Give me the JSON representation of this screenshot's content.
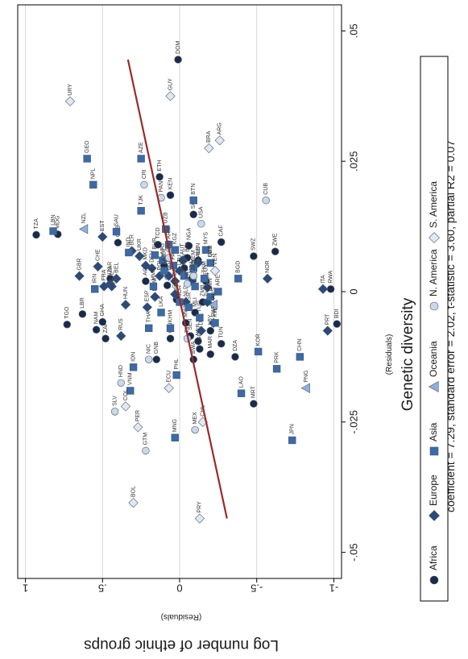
{
  "chart_data": {
    "type": "scatter",
    "orientation": "rotated-90-ccw",
    "title": "",
    "xlabel": "Genetic diversity",
    "xlabel_sub": "(Residuals)",
    "ylabel": "Log number of ethnic groups",
    "ylabel_sub": "(Residuals)",
    "xlim": [
      -0.055,
      0.055
    ],
    "ylim": [
      -1.05,
      1.05
    ],
    "x_ticks": [
      {
        "value": -0.05,
        "label": "-.05"
      },
      {
        "value": -0.025,
        "label": "-.025"
      },
      {
        "value": 0,
        "label": "0"
      },
      {
        "value": 0.025,
        "label": ".025"
      },
      {
        "value": 0.05,
        "label": ".05"
      }
    ],
    "y_ticks": [
      {
        "value": 1,
        "label": "1"
      },
      {
        "value": 0.5,
        "label": ".5"
      },
      {
        "value": 0,
        "label": "0"
      },
      {
        "value": -0.5,
        "label": "-.5"
      },
      {
        "value": -1,
        "label": "-1"
      }
    ],
    "grid": true,
    "fit_line": {
      "color": "#9b2a2a",
      "points": [
        [
          -0.0435,
          -0.307
        ],
        [
          0.0445,
          0.335
        ]
      ]
    },
    "caption": "coefficient = 7.29, standard error = 2.02, t-statistic = 3.60, partial R2 = 0.07",
    "legend": {
      "placement": "right",
      "items": [
        {
          "name": "Africa",
          "marker": "circle",
          "color": "#1a2a4a"
        },
        {
          "name": "Europe",
          "marker": "diamond",
          "color": "#2a4a7a"
        },
        {
          "name": "Asia",
          "marker": "square",
          "color": "#3a6aa8"
        },
        {
          "name": "Oceania",
          "marker": "triangle",
          "color": "#8fb0d8"
        },
        {
          "name": "N. America",
          "marker": "circle",
          "color": "#c9d9ea"
        },
        {
          "name": "S. America",
          "marker": "diamond",
          "color": "#e1e8f1"
        }
      ]
    },
    "series": [
      {
        "name": "Africa",
        "points": [
          {
            "label": "DOM",
            "x": 0.0445,
            "y": 0.01
          },
          {
            "label": "TZA",
            "x": 0.0109,
            "y": 0.93
          },
          {
            "label": "TGO",
            "x": -0.0063,
            "y": 0.73
          },
          {
            "label": "LBR",
            "x": -0.0043,
            "y": 0.63
          },
          {
            "label": "NAM",
            "x": -0.0073,
            "y": 0.54
          },
          {
            "label": "GHA",
            "x": -0.0058,
            "y": 0.5
          },
          {
            "label": "ZAF",
            "x": -0.009,
            "y": 0.48
          },
          {
            "label": "GNB",
            "x": -0.013,
            "y": 0.15
          },
          {
            "label": "ETH",
            "x": 0.022,
            "y": 0.13
          },
          {
            "label": "TCD",
            "x": 0.009,
            "y": 0.14
          },
          {
            "label": "SOM",
            "x": 0.0148,
            "y": -0.09
          },
          {
            "label": "CAF",
            "x": 0.0095,
            "y": -0.27
          },
          {
            "label": "SDN",
            "x": 0.0055,
            "y": -0.2
          },
          {
            "label": "SWZ",
            "x": 0.0068,
            "y": -0.48
          },
          {
            "label": "ZWE",
            "x": 0.0077,
            "y": -0.62
          },
          {
            "label": "RWA",
            "x": 0.0005,
            "y": -0.98
          },
          {
            "label": "BDI",
            "x": -0.0062,
            "y": -1.02
          },
          {
            "label": "DZA",
            "x": -0.0125,
            "y": -0.36
          },
          {
            "label": "MRT",
            "x": -0.0215,
            "y": -0.48
          },
          {
            "label": "NER",
            "x": -0.0095,
            "y": -0.12
          },
          {
            "label": "NGA",
            "x": 0.0088,
            "y": -0.06
          },
          {
            "label": "ZAR",
            "x": 0.0025,
            "y": 0.45
          },
          {
            "label": "KEN",
            "x": 0.0185,
            "y": 0.06
          },
          {
            "label": "CIV",
            "x": 0.0045,
            "y": -0.03
          },
          {
            "label": "GIN",
            "x": -0.009,
            "y": 0.06
          },
          {
            "label": "UGA",
            "x": 0.0025,
            "y": -0.08
          },
          {
            "label": "MOZ",
            "x": 0.005,
            "y": 0.1
          },
          {
            "label": "MLI",
            "x": -0.004,
            "y": -0.1
          },
          {
            "label": "CMR",
            "x": 0.0012,
            "y": 0.08
          },
          {
            "label": "BFA",
            "x": 0.0065,
            "y": -0.05
          },
          {
            "label": "EGY",
            "x": 0.002,
            "y": -0.17
          },
          {
            "label": "ZMB",
            "x": -0.002,
            "y": -0.15
          },
          {
            "label": "SEN",
            "x": -0.0085,
            "y": -0.07
          },
          {
            "label": "MAR",
            "x": -0.012,
            "y": -0.2
          },
          {
            "label": "BWA",
            "x": -0.013,
            "y": -0.09
          },
          {
            "label": "LSO",
            "x": -0.011,
            "y": -0.13
          },
          {
            "label": "AGO",
            "x": 0.002,
            "y": 0.22
          },
          {
            "label": "MWI",
            "x": -0.006,
            "y": -0.04
          },
          {
            "label": "TUN",
            "x": -0.01,
            "y": -0.27
          },
          {
            "label": "BEN",
            "x": 0.006,
            "y": -0.12
          },
          {
            "label": "SLE",
            "x": -0.0015,
            "y": 0.02
          },
          {
            "label": "LBY",
            "x": -0.0075,
            "y": -0.2
          },
          {
            "label": "MDG",
            "x": 0.011,
            "y": 0.79
          },
          {
            "label": "GAB",
            "x": 0.0094,
            "y": 0.4
          }
        ]
      },
      {
        "name": "Europe",
        "points": [
          {
            "label": "GBR",
            "x": 0.003,
            "y": 0.65
          },
          {
            "label": "CHE",
            "x": 0.0048,
            "y": 0.53
          },
          {
            "label": "EST",
            "x": 0.0105,
            "y": 0.5
          },
          {
            "label": "FRA",
            "x": 0.001,
            "y": 0.49
          },
          {
            "label": "YUG",
            "x": 0.0015,
            "y": 0.45
          },
          {
            "label": "BEL",
            "x": 0.0025,
            "y": 0.41
          },
          {
            "label": "HUN",
            "x": -0.0025,
            "y": 0.35
          },
          {
            "label": "RUS",
            "x": -0.0085,
            "y": 0.38
          },
          {
            "label": "BLR",
            "x": 0.0078,
            "y": 0.31
          },
          {
            "label": "NOR",
            "x": 0.0025,
            "y": -0.57
          },
          {
            "label": "ITA",
            "x": 0.0005,
            "y": -0.93
          },
          {
            "label": "PRT",
            "x": -0.0075,
            "y": -0.96
          },
          {
            "label": "ALB",
            "x": 0.0055,
            "y": -0.12
          },
          {
            "label": "IRL",
            "x": 0.001,
            "y": 0.44
          },
          {
            "label": "ESP",
            "x": -0.003,
            "y": 0.21
          },
          {
            "label": "SWE",
            "x": -0.006,
            "y": -0.22
          },
          {
            "label": "GRC",
            "x": 0.002,
            "y": 0.03
          },
          {
            "label": "AUT",
            "x": 0.006,
            "y": -0.02
          },
          {
            "label": "DEU",
            "x": 0.0045,
            "y": 0.18
          },
          {
            "label": "POL",
            "x": 0.003,
            "y": 0.13
          },
          {
            "label": "ROM",
            "x": -0.001,
            "y": 0.16
          },
          {
            "label": "UKR",
            "x": 0.0068,
            "y": 0.26
          },
          {
            "label": "FIN",
            "x": 0.0008,
            "y": -0.18
          },
          {
            "label": "DNK",
            "x": -0.0075,
            "y": -0.14
          },
          {
            "label": "NLD",
            "x": -0.002,
            "y": -0.04
          },
          {
            "label": "CZE",
            "x": -0.0005,
            "y": 0.03
          },
          {
            "label": "SVK",
            "x": -0.002,
            "y": -0.18
          },
          {
            "label": "LTU",
            "x": 0.004,
            "y": 0.0
          },
          {
            "label": "LVA",
            "x": 0.002,
            "y": -0.08
          },
          {
            "label": "BGR",
            "x": 0.003,
            "y": 0.07
          },
          {
            "label": "MKD",
            "x": 0.005,
            "y": 0.22
          }
        ]
      },
      {
        "name": "Asia",
        "points": [
          {
            "label": "LBN",
            "x": 0.0116,
            "y": 0.82
          },
          {
            "label": "GEO",
            "x": 0.0255,
            "y": 0.6
          },
          {
            "label": "NPL",
            "x": 0.0205,
            "y": 0.56
          },
          {
            "label": "AZE",
            "x": 0.0255,
            "y": 0.25
          },
          {
            "label": "SAU",
            "x": 0.0115,
            "y": 0.41
          },
          {
            "label": "IND",
            "x": 0.0075,
            "y": 0.33
          },
          {
            "label": "IRN",
            "x": 0.0005,
            "y": 0.55
          },
          {
            "label": "CHN",
            "x": -0.0125,
            "y": -0.78
          },
          {
            "label": "PRK",
            "x": -0.0148,
            "y": -0.63
          },
          {
            "label": "KOR",
            "x": -0.0115,
            "y": -0.51
          },
          {
            "label": "JPN",
            "x": -0.0285,
            "y": -0.73
          },
          {
            "label": "IDN",
            "x": -0.0145,
            "y": 0.3
          },
          {
            "label": "PHL",
            "x": -0.016,
            "y": 0.02
          },
          {
            "label": "LAO",
            "x": -0.0195,
            "y": -0.4
          },
          {
            "label": "MNG",
            "x": -0.028,
            "y": 0.03
          },
          {
            "label": "TJK",
            "x": 0.0155,
            "y": 0.25
          },
          {
            "label": "UZB",
            "x": 0.012,
            "y": 0.09
          },
          {
            "label": "BTN",
            "x": 0.0175,
            "y": -0.09
          },
          {
            "label": "BGD",
            "x": 0.0025,
            "y": -0.38
          },
          {
            "label": "VNM",
            "x": -0.019,
            "y": 0.32
          },
          {
            "label": "THA",
            "x": -0.007,
            "y": 0.2
          },
          {
            "label": "MYS",
            "x": 0.008,
            "y": -0.17
          },
          {
            "label": "PAK",
            "x": 0.005,
            "y": 0.04
          },
          {
            "label": "AFG",
            "x": 0.006,
            "y": 0.11
          },
          {
            "label": "IRQ",
            "x": 0.003,
            "y": -0.03
          },
          {
            "label": "SYR",
            "x": 0.001,
            "y": -0.1
          },
          {
            "label": "JOR",
            "x": -0.002,
            "y": 0.0
          },
          {
            "label": "TUR",
            "x": -0.005,
            "y": -0.13
          },
          {
            "label": "KAZ",
            "x": 0.004,
            "y": 0.1
          },
          {
            "label": "KGZ",
            "x": 0.008,
            "y": 0.03
          },
          {
            "label": "TKM",
            "x": 0.0025,
            "y": -0.16
          },
          {
            "label": "ARM",
            "x": 0.009,
            "y": 0.07
          },
          {
            "label": "ISR",
            "x": -0.003,
            "y": -0.06
          },
          {
            "label": "YEM",
            "x": 0.0045,
            "y": -0.09
          },
          {
            "label": "OMN",
            "x": -0.001,
            "y": -0.2
          },
          {
            "label": "LKA",
            "x": -0.004,
            "y": 0.12
          },
          {
            "label": "MMR",
            "x": 0.001,
            "y": 0.17
          },
          {
            "label": "KHM",
            "x": -0.007,
            "y": 0.06
          },
          {
            "label": "ARE",
            "x": 0.0,
            "y": -0.25
          },
          {
            "label": "KWT",
            "x": -0.006,
            "y": -0.23
          },
          {
            "label": "QAT",
            "x": 0.0055,
            "y": -0.2
          },
          {
            "label": "BHR",
            "x": 0.007,
            "y": 0.16
          }
        ]
      },
      {
        "name": "Oceania",
        "points": [
          {
            "label": "PNG",
            "x": -0.0185,
            "y": -0.82
          },
          {
            "label": "NZL",
            "x": 0.012,
            "y": 0.62
          },
          {
            "label": "AUS",
            "x": -0.0025,
            "y": -0.22
          }
        ]
      },
      {
        "name": "N. America",
        "points": [
          {
            "label": "CRI",
            "x": 0.0205,
            "y": 0.23
          },
          {
            "label": "CUB",
            "x": 0.0175,
            "y": -0.56
          },
          {
            "label": "GTM",
            "x": -0.0305,
            "y": 0.22
          },
          {
            "label": "MEX",
            "x": -0.0265,
            "y": -0.1
          },
          {
            "label": "HND",
            "x": -0.0175,
            "y": 0.38
          },
          {
            "label": "USA",
            "x": 0.013,
            "y": -0.14
          },
          {
            "label": "CAN",
            "x": 0.0065,
            "y": 0.07
          },
          {
            "label": "PAN",
            "x": 0.018,
            "y": 0.12
          },
          {
            "label": "HTI",
            "x": 0.0015,
            "y": -0.05
          },
          {
            "label": "NIC",
            "x": -0.013,
            "y": 0.2
          },
          {
            "label": "SLV",
            "x": -0.023,
            "y": 0.42
          },
          {
            "label": "JAM",
            "x": 0.003,
            "y": -0.09
          },
          {
            "label": "TTO",
            "x": -0.009,
            "y": -0.05
          }
        ]
      },
      {
        "name": "S. America",
        "points": [
          {
            "label": "URY",
            "x": 0.0365,
            "y": 0.71
          },
          {
            "label": "GUY",
            "x": 0.0375,
            "y": 0.06
          },
          {
            "label": "BRA",
            "x": 0.0275,
            "y": -0.19
          },
          {
            "label": "ARG",
            "x": 0.029,
            "y": -0.26
          },
          {
            "label": "ECU",
            "x": -0.0185,
            "y": 0.07
          },
          {
            "label": "PER",
            "x": -0.026,
            "y": 0.27
          },
          {
            "label": "CHL",
            "x": -0.025,
            "y": -0.15
          },
          {
            "label": "BOL",
            "x": -0.0405,
            "y": 0.3
          },
          {
            "label": "PRY",
            "x": -0.0435,
            "y": -0.13
          },
          {
            "label": "COL",
            "x": -0.022,
            "y": 0.35
          },
          {
            "label": "VEN",
            "x": 0.004,
            "y": -0.23
          }
        ]
      }
    ]
  }
}
